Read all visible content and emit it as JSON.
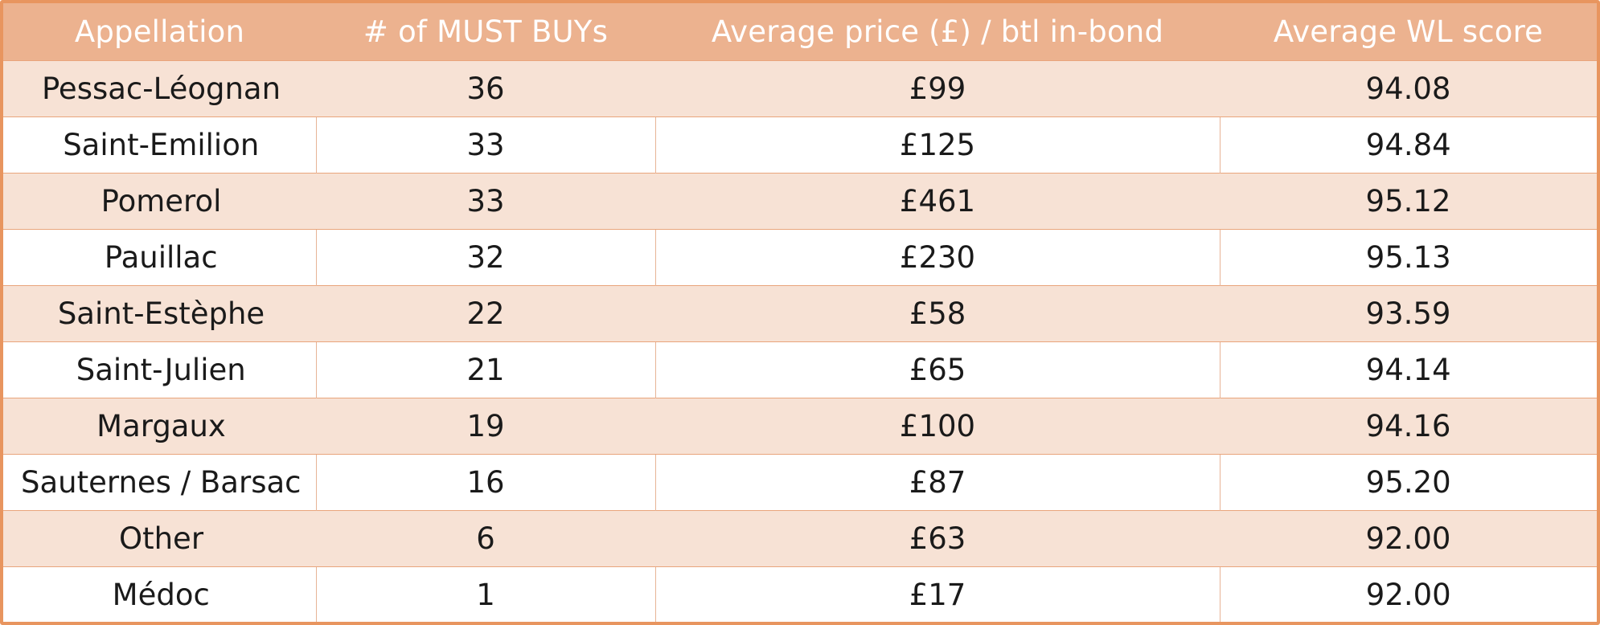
{
  "table": {
    "columns": [
      "Appellation",
      "# of MUST BUYs",
      "Average price (£) / btl in-bond",
      "Average WL score"
    ],
    "rows": [
      {
        "appellation": "Pessac-Léognan",
        "must_buys": "36",
        "avg_price": "£99",
        "avg_score": "94.08"
      },
      {
        "appellation": "Saint-Emilion",
        "must_buys": "33",
        "avg_price": "£125",
        "avg_score": "94.84"
      },
      {
        "appellation": "Pomerol",
        "must_buys": "33",
        "avg_price": "£461",
        "avg_score": "95.12"
      },
      {
        "appellation": "Pauillac",
        "must_buys": "32",
        "avg_price": "£230",
        "avg_score": "95.13"
      },
      {
        "appellation": "Saint-Estèphe",
        "must_buys": "22",
        "avg_price": "£58",
        "avg_score": "93.59"
      },
      {
        "appellation": "Saint-Julien",
        "must_buys": "21",
        "avg_price": "£65",
        "avg_score": "94.14"
      },
      {
        "appellation": "Margaux",
        "must_buys": "19",
        "avg_price": "£100",
        "avg_score": "94.16"
      },
      {
        "appellation": "Sauternes / Barsac",
        "must_buys": "16",
        "avg_price": "£87",
        "avg_score": "95.20"
      },
      {
        "appellation": "Other",
        "must_buys": "6",
        "avg_price": "£63",
        "avg_score": "92.00"
      },
      {
        "appellation": "Médoc",
        "must_buys": "1",
        "avg_price": "£17",
        "avg_score": "92.00"
      }
    ]
  },
  "colors": {
    "header_bg": "#ecb28f",
    "header_text": "#ffffff",
    "shaded_row_bg": "#f7e2d5",
    "plain_row_bg": "#ffffff",
    "border": "#e8955f"
  }
}
